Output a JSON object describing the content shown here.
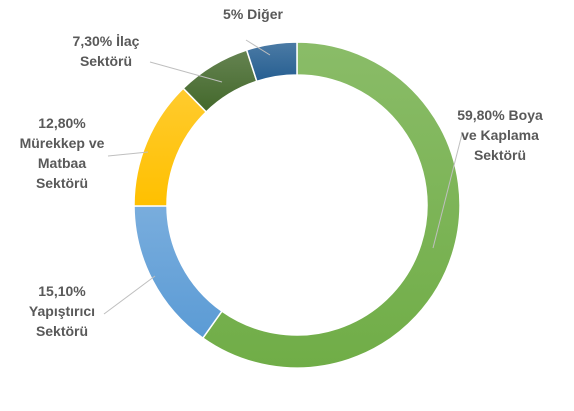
{
  "chart_data": {
    "type": "pie",
    "variant": "donut",
    "slices": [
      {
        "label_lines": [
          "59,80% Boya",
          "ve Kaplama",
          "Sektörü"
        ],
        "value": 59.8,
        "color": "#70ad47"
      },
      {
        "label_lines": [
          "15,10%",
          "Yapıştırıcı",
          "Sektörü"
        ],
        "value": 15.1,
        "color": "#5b9bd5"
      },
      {
        "label_lines": [
          "12,80%",
          "Mürekkep ve",
          "Matbaa",
          "Sektörü"
        ],
        "value": 12.8,
        "color": "#ffc000"
      },
      {
        "label_lines": [
          "7,30% İlaç",
          "Sektörü"
        ],
        "value": 7.3,
        "color": "#43682b"
      },
      {
        "label_lines": [
          "5% Diğer"
        ],
        "value": 5.0,
        "color": "#255e91"
      }
    ]
  }
}
